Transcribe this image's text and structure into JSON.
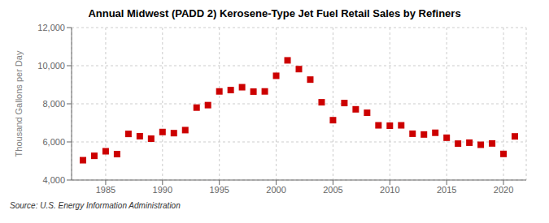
{
  "chart_data": {
    "type": "scatter",
    "title": "Annual Midwest (PADD 2) Kerosene-Type Jet Fuel Retail Sales by Refiners",
    "ylabel": "Thousand Gallons per Day",
    "annotations": [
      "Source: U.S. Energy Information Administration"
    ],
    "x": [
      1983,
      1984,
      1985,
      1986,
      1987,
      1988,
      1989,
      1990,
      1991,
      1992,
      1993,
      1994,
      1995,
      1996,
      1997,
      1998,
      1999,
      2000,
      2001,
      2002,
      2003,
      2004,
      2005,
      2006,
      2007,
      2008,
      2009,
      2010,
      2011,
      2012,
      2013,
      2014,
      2015,
      2016,
      2017,
      2018,
      2019,
      2020,
      2021
    ],
    "values": [
      5040,
      5270,
      5510,
      5360,
      6420,
      6300,
      6170,
      6520,
      6460,
      6620,
      7800,
      7930,
      8650,
      8720,
      8870,
      8640,
      8650,
      9470,
      10280,
      9820,
      9270,
      8080,
      7140,
      8040,
      7710,
      7530,
      6870,
      6850,
      6870,
      6430,
      6390,
      6480,
      6220,
      5910,
      5960,
      5850,
      5920,
      5370,
      6290
    ],
    "color": "#cc0000",
    "marker": "square",
    "xlim": [
      1982,
      2022
    ],
    "ylim": [
      4000,
      12000
    ],
    "xticks": [
      1985,
      1990,
      1995,
      2000,
      2005,
      2010,
      2015,
      2020
    ],
    "yticks": [
      {
        "value": 4000,
        "label": "4,000"
      },
      {
        "value": 6000,
        "label": "6,000"
      },
      {
        "value": 8000,
        "label": "8,000"
      },
      {
        "value": 10000,
        "label": "10,000"
      },
      {
        "value": 12000,
        "label": "12,000"
      }
    ],
    "grid": true
  }
}
